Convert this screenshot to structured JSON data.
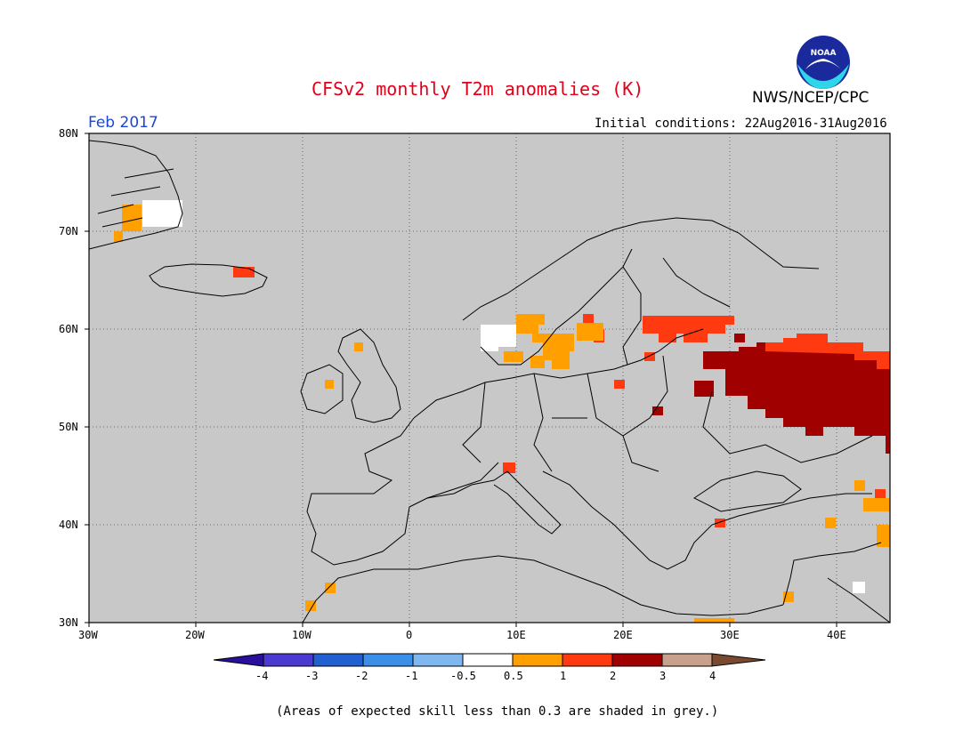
{
  "title": "CFSv2 monthly T2m anomalies (K)",
  "agency": "NWS/NCEP/CPC",
  "logo_text": "NOAA",
  "valid_month": "Feb 2017",
  "initial_conditions": "Initial conditions: 22Aug2016-31Aug2016",
  "footnote": "(Areas of expected skill less than 0.3 are shaded in grey.)",
  "map": {
    "lat_labels": [
      "80N",
      "70N",
      "60N",
      "50N",
      "40N",
      "30N"
    ],
    "lon_labels": [
      "30W",
      "20W",
      "10W",
      "0",
      "10E",
      "20E",
      "30E",
      "40E"
    ],
    "background_color": "#c8c8c8",
    "grid": "dotted"
  },
  "colorbar": {
    "labels": [
      "-4",
      "-3",
      "-2",
      "-1",
      "-0.5",
      "0.5",
      "1",
      "2",
      "3",
      "4"
    ],
    "colors": [
      "#2a0f9c",
      "#4a3ad0",
      "#2060d0",
      "#3b8fe8",
      "#7fb8f0",
      "#ffffff",
      "#ff9f00",
      "#ff3a10",
      "#a00000",
      "#c8a08c",
      "#7a4a30"
    ]
  }
}
